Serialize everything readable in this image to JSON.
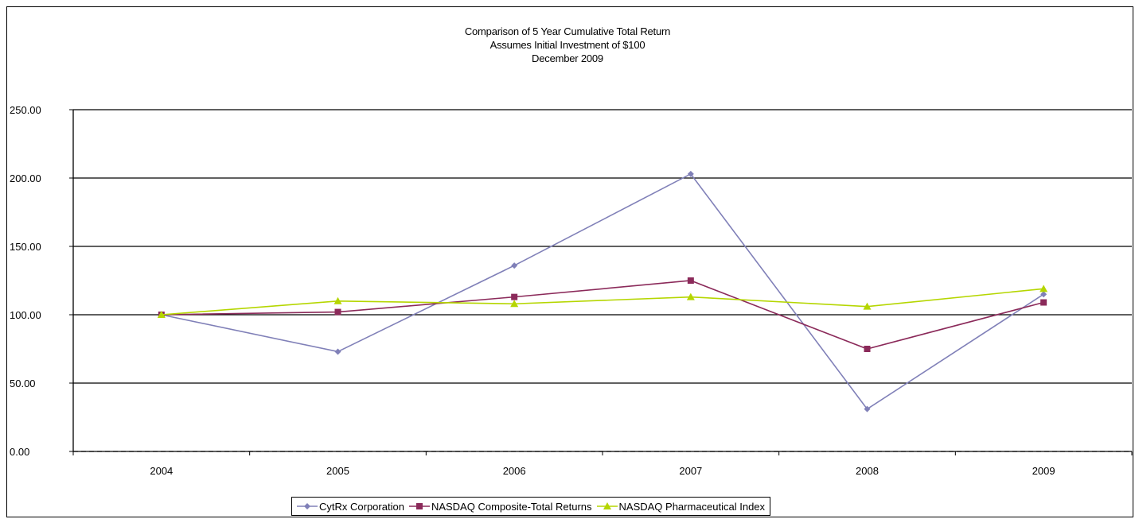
{
  "chart_data": {
    "type": "line",
    "title_lines": [
      "Comparison of 5 Year Cumulative Total Return",
      "Assumes Initial Investment of $100",
      "December 2009"
    ],
    "categories": [
      "2004",
      "2005",
      "2006",
      "2007",
      "2008",
      "2009"
    ],
    "y_ticks": [
      "0.00",
      "50.00",
      "100.00",
      "150.00",
      "200.00",
      "250.00"
    ],
    "ylim": [
      0,
      250
    ],
    "grid": "horizontal",
    "legend_position": "bottom",
    "series": [
      {
        "name": "CytRx Corporation",
        "color": "#8080b8",
        "marker": "diamond",
        "values": [
          100,
          73,
          136,
          203,
          31,
          115
        ]
      },
      {
        "name": "NASDAQ Composite-Total Returns",
        "color": "#8b2a5a",
        "marker": "square",
        "values": [
          100,
          102,
          113,
          125,
          75,
          109
        ]
      },
      {
        "name": "NASDAQ Pharmaceutical Index",
        "color": "#b5d600",
        "marker": "triangle",
        "values": [
          100,
          110,
          108,
          113,
          106,
          119
        ]
      }
    ]
  }
}
